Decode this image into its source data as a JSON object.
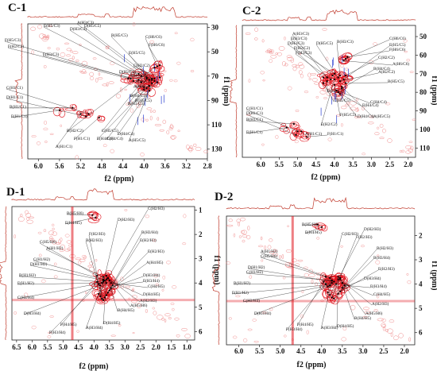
{
  "chart_data": [
    {
      "type": "scatter",
      "panel_label": "C-1",
      "xlabel": "f2 (ppm)",
      "ylabel": "f1 (ppm)",
      "xlim": [
        6.2,
        2.8
      ],
      "ylim": [
        27,
        138
      ],
      "xticks": [
        6.0,
        5.6,
        5.2,
        4.8,
        4.4,
        4.0,
        3.6,
        3.2,
        2.8
      ],
      "xtick_labels": [
        "6.0",
        "5.6",
        "5.2",
        "4.8",
        "4.4",
        "4.0",
        "3.6",
        "3.2",
        "2.8"
      ],
      "yticks": [
        30,
        50,
        70,
        90,
        110,
        130
      ],
      "ytick_labels": [
        "30",
        "50",
        "70",
        "90",
        "110",
        "130"
      ],
      "peaks": [
        {
          "label": "F(H5/C3)",
          "x": 4.25,
          "y": 72
        },
        {
          "label": "E(H5/C3)",
          "x": 4.05,
          "y": 70
        },
        {
          "label": "D(H3/C3)",
          "x": 4.1,
          "y": 68
        },
        {
          "label": "A(H3/C3)",
          "x": 3.95,
          "y": 71
        },
        {
          "label": "D(H5/C5)",
          "x": 3.85,
          "y": 72
        },
        {
          "label": "B(H5/C5)",
          "x": 3.8,
          "y": 74
        },
        {
          "label": "C(H6/C6)",
          "x": 3.75,
          "y": 62
        },
        {
          "label": "F(H6/C6)",
          "x": 3.7,
          "y": 61
        },
        {
          "label": "F(H2/C2)",
          "x": 4.3,
          "y": 72
        },
        {
          "label": "F(H3/C3)",
          "x": 4.1,
          "y": 73
        },
        {
          "label": "E(H5/C5)",
          "x": 3.9,
          "y": 73
        },
        {
          "label": "C(H2/C2)",
          "x": 3.7,
          "y": 71
        },
        {
          "label": "D(H2/C2)",
          "x": 3.8,
          "y": 72
        },
        {
          "label": "E(H2/C2)",
          "x": 3.85,
          "y": 73
        },
        {
          "label": "A(H6/C6)",
          "x": 3.8,
          "y": 63
        },
        {
          "label": "A(H4/C4)",
          "x": 4.0,
          "y": 79
        },
        {
          "label": "B(H4/C4)",
          "x": 3.9,
          "y": 78
        },
        {
          "label": "B(H5/C5)",
          "x": 3.75,
          "y": 75
        },
        {
          "label": "C(H1/C1)",
          "x": 5.05,
          "y": 101
        },
        {
          "label": "D(H1/C1)",
          "x": 5.1,
          "y": 103
        },
        {
          "label": "B(H1/C1)",
          "x": 5.35,
          "y": 96
        },
        {
          "label": "E(H1/C1)",
          "x": 5.6,
          "y": 98
        },
        {
          "label": "A(H1/C1)",
          "x": 5.2,
          "y": 101
        },
        {
          "label": "F(H1/C1)",
          "x": 4.85,
          "y": 104
        },
        {
          "label": "C(H5/C5)",
          "x": 4.05,
          "y": 75
        },
        {
          "label": "B(H2/C2)",
          "x": 4.2,
          "y": 74
        },
        {
          "label": "E(H4/C4)",
          "x": 3.95,
          "y": 80
        },
        {
          "label": "C(H4/C4)",
          "x": 4.0,
          "y": 81
        },
        {
          "label": "D(H4/C4)",
          "x": 3.9,
          "y": 82
        },
        {
          "label": "A(H5/C5)",
          "x": 3.85,
          "y": 76
        },
        {
          "label": "B(H3/C3)",
          "x": 3.95,
          "y": 72
        }
      ]
    },
    {
      "type": "scatter",
      "panel_label": "C-2",
      "xlabel": "f2 (ppm)",
      "ylabel": "f1 (ppm)",
      "xlim": [
        6.5,
        1.8
      ],
      "ylim": [
        44,
        115
      ],
      "xticks": [
        6.0,
        5.5,
        5.0,
        4.5,
        4.0,
        3.5,
        3.0,
        2.5,
        2.0
      ],
      "xtick_labels": [
        "6.0",
        "5.5",
        "5.0",
        "4.5",
        "4.0",
        "3.5",
        "3.0",
        "2.5",
        "2.0"
      ],
      "yticks": [
        50,
        60,
        70,
        80,
        90,
        100,
        110
      ],
      "ytick_labels": [
        "50",
        "60",
        "70",
        "80",
        "90",
        "100",
        "110"
      ],
      "peaks": [
        {
          "label": "A(H3/C3)",
          "x": 4.2,
          "y": 72
        },
        {
          "label": "E(H3/C3)",
          "x": 4.05,
          "y": 71
        },
        {
          "label": "D(H3/C3)",
          "x": 4.0,
          "y": 70
        },
        {
          "label": "F(H2/C2)",
          "x": 4.3,
          "y": 72
        },
        {
          "label": "F(H3/C3)",
          "x": 4.1,
          "y": 73
        },
        {
          "label": "D(H5/C5)",
          "x": 3.9,
          "y": 72
        },
        {
          "label": "B(H3/C3)",
          "x": 3.85,
          "y": 71
        },
        {
          "label": "C(H6/C6)",
          "x": 3.7,
          "y": 62
        },
        {
          "label": "E(H5/C5)",
          "x": 3.75,
          "y": 73
        },
        {
          "label": "F(H6/C6)",
          "x": 3.65,
          "y": 61
        },
        {
          "label": "C(H2/C2)",
          "x": 3.7,
          "y": 71
        },
        {
          "label": "A(H6/C6)",
          "x": 3.75,
          "y": 63
        },
        {
          "label": "B(H4/C4)",
          "x": 3.8,
          "y": 78
        },
        {
          "label": "B(H5/C5)",
          "x": 3.7,
          "y": 75
        },
        {
          "label": "E(H2/C2)",
          "x": 4.0,
          "y": 73
        },
        {
          "label": "A(H2/C2)",
          "x": 3.85,
          "y": 74
        },
        {
          "label": "C(H4/C4)",
          "x": 3.95,
          "y": 79
        },
        {
          "label": "F(H5/C5)",
          "x": 4.0,
          "y": 76
        },
        {
          "label": "E(H4/C4)",
          "x": 3.9,
          "y": 80
        },
        {
          "label": "D(H4/C4)",
          "x": 3.85,
          "y": 81
        },
        {
          "label": "A(H5/C5)",
          "x": 3.8,
          "y": 77
        },
        {
          "label": "C(H5/C5)",
          "x": 4.3,
          "y": 75
        },
        {
          "label": "B(H2/C2)",
          "x": 4.2,
          "y": 74
        },
        {
          "label": "C(H1/C1)",
          "x": 5.0,
          "y": 101
        },
        {
          "label": "D(H1/C1)",
          "x": 5.05,
          "y": 103
        },
        {
          "label": "B(H1/C1)",
          "x": 5.1,
          "y": 97
        },
        {
          "label": "E(H1/C1)",
          "x": 5.3,
          "y": 99
        },
        {
          "label": "A(H1/C1)",
          "x": 4.9,
          "y": 101
        },
        {
          "label": "F(H1/C1)",
          "x": 4.75,
          "y": 104
        }
      ]
    },
    {
      "type": "scatter",
      "panel_label": "D-1",
      "xlabel": "f2 (ppm)",
      "ylabel": "f1 (ppm)",
      "xlim": [
        6.65,
        0.75
      ],
      "ylim": [
        0.85,
        6.35
      ],
      "xticks": [
        6.5,
        6.0,
        5.5,
        5.0,
        4.5,
        4.0,
        3.5,
        3.0,
        2.5,
        2.0,
        1.5,
        1.0
      ],
      "xtick_labels": [
        "6.5",
        "6.0",
        "5.5",
        "5.0",
        "4.5",
        "4.0",
        "3.5",
        "3.0",
        "2.5",
        "2.0",
        "1.5",
        "1.0"
      ],
      "yticks": [
        1,
        2,
        3,
        4,
        5,
        6
      ],
      "ytick_labels": [
        "1",
        "2",
        "3",
        "4",
        "5",
        "6"
      ],
      "peaks": [
        {
          "label": "B(H5/H6)",
          "x": 4.05,
          "y": 1.2
        },
        {
          "label": "E(H4/H5)",
          "x": 3.95,
          "y": 1.3
        },
        {
          "label": "C(H5/H6)",
          "x": 3.9,
          "y": 3.7
        },
        {
          "label": "A(H1/H2)",
          "x": 3.7,
          "y": 3.75
        },
        {
          "label": "C(H1/H2)",
          "x": 3.7,
          "y": 3.85
        },
        {
          "label": "D(H1/H2)",
          "x": 3.65,
          "y": 3.9
        },
        {
          "label": "B(H1/H2)",
          "x": 3.7,
          "y": 3.95
        },
        {
          "label": "E(H1/H2)",
          "x": 3.6,
          "y": 4.0
        },
        {
          "label": "C(H3/H4)",
          "x": 3.75,
          "y": 4.0
        },
        {
          "label": "D(H3/H4)",
          "x": 3.8,
          "y": 4.1
        },
        {
          "label": "F(H3/H4)",
          "x": 3.85,
          "y": 4.05
        },
        {
          "label": "F(H4/H5)",
          "x": 3.9,
          "y": 3.95
        },
        {
          "label": "A(H3/H4)",
          "x": 3.7,
          "y": 3.9
        },
        {
          "label": "D(H4/H5)",
          "x": 3.6,
          "y": 3.85
        },
        {
          "label": "B(H4/H5)",
          "x": 3.55,
          "y": 3.8
        },
        {
          "label": "A(H5/H6)",
          "x": 3.6,
          "y": 3.7
        },
        {
          "label": "A(H2/H3)",
          "x": 3.55,
          "y": 3.8
        },
        {
          "label": "D(H4/H5)",
          "x": 3.5,
          "y": 3.9
        },
        {
          "label": "C(H4/H5)",
          "x": 3.45,
          "y": 4.0
        },
        {
          "label": "E(H3/H4)",
          "x": 3.4,
          "y": 4.1
        },
        {
          "label": "D(H3/H4)",
          "x": 3.45,
          "y": 4.2
        },
        {
          "label": "A(H4/H5)",
          "x": 3.5,
          "y": 4.3
        },
        {
          "label": "E(H2/H3)",
          "x": 3.55,
          "y": 4.4
        },
        {
          "label": "B(H3/H4)",
          "x": 3.6,
          "y": 4.5
        },
        {
          "label": "E(H2/H3)",
          "x": 3.65,
          "y": 4.6
        },
        {
          "label": "B(H2/H3)",
          "x": 3.7,
          "y": 4.7
        },
        {
          "label": "F(H2/H3)",
          "x": 3.75,
          "y": 4.65
        },
        {
          "label": "D(H2/H3)",
          "x": 3.8,
          "y": 4.55
        },
        {
          "label": "C(H2/H3)",
          "x": 3.85,
          "y": 4.45
        }
      ]
    },
    {
      "type": "scatter",
      "panel_label": "D-2",
      "xlabel": "f2 (ppm)",
      "ylabel": "f1 (ppm)",
      "xlim": [
        6.3,
        1.75
      ],
      "ylim": [
        1.2,
        6.5
      ],
      "xticks": [
        6.0,
        5.5,
        5.0,
        4.5,
        4.0,
        3.5,
        3.0,
        2.5,
        2.0
      ],
      "xtick_labels": [
        "6.0",
        "5.5",
        "5.0",
        "4.5",
        "4.0",
        "3.5",
        "3.0",
        "2.5",
        "2.0"
      ],
      "yticks": [
        2,
        3,
        4,
        5,
        6
      ],
      "ytick_labels": [
        "2",
        "3",
        "4",
        "5",
        "6"
      ],
      "peaks": [
        {
          "label": "B(H5/H6)",
          "x": 4.1,
          "y": 1.55
        },
        {
          "label": "E(H4/H5)",
          "x": 4.0,
          "y": 1.65
        },
        {
          "label": "C(H5/H6)",
          "x": 3.9,
          "y": 3.7
        },
        {
          "label": "A(H1/H2)",
          "x": 3.8,
          "y": 3.75
        },
        {
          "label": "C(H1/H2)",
          "x": 3.75,
          "y": 3.85
        },
        {
          "label": "D(H1/H2)",
          "x": 3.7,
          "y": 3.9
        },
        {
          "label": "B(H1/H2)",
          "x": 3.75,
          "y": 3.95
        },
        {
          "label": "E(H1/H2)",
          "x": 3.65,
          "y": 4.0
        },
        {
          "label": "C(H3/H4)",
          "x": 3.8,
          "y": 4.05
        },
        {
          "label": "D(H3/H4)",
          "x": 3.85,
          "y": 4.1
        },
        {
          "label": "F(H3/H4)",
          "x": 3.9,
          "y": 4.0
        },
        {
          "label": "F(H4/H5)",
          "x": 3.95,
          "y": 3.9
        },
        {
          "label": "A(H3/H4)",
          "x": 3.75,
          "y": 3.85
        },
        {
          "label": "D(H4/H5)",
          "x": 3.6,
          "y": 3.8
        },
        {
          "label": "B(H4/H5)",
          "x": 3.55,
          "y": 3.75
        },
        {
          "label": "A(H5/H6)",
          "x": 3.6,
          "y": 3.7
        },
        {
          "label": "A(H2/H3)",
          "x": 3.55,
          "y": 3.8
        },
        {
          "label": "C(H4/H5)",
          "x": 3.5,
          "y": 3.95
        },
        {
          "label": "E(H3/H4)",
          "x": 3.45,
          "y": 4.05
        },
        {
          "label": "D(H3/H4)",
          "x": 3.5,
          "y": 4.15
        },
        {
          "label": "E(H2/H3)",
          "x": 3.55,
          "y": 4.3
        },
        {
          "label": "B(H3/H4)",
          "x": 3.6,
          "y": 4.4
        },
        {
          "label": "B(H2/H3)",
          "x": 3.7,
          "y": 4.6
        },
        {
          "label": "F(H2/H3)",
          "x": 3.75,
          "y": 4.55
        },
        {
          "label": "D(H2/H3)",
          "x": 3.8,
          "y": 4.45
        },
        {
          "label": "C(H2/H3)",
          "x": 3.85,
          "y": 4.35
        }
      ]
    }
  ],
  "colors": {
    "contour": "#e0141e",
    "contour_light": "#f08a8a",
    "blue_contour": "#2a3fd0",
    "projection": "#c0392b",
    "arrow": "#111111"
  }
}
